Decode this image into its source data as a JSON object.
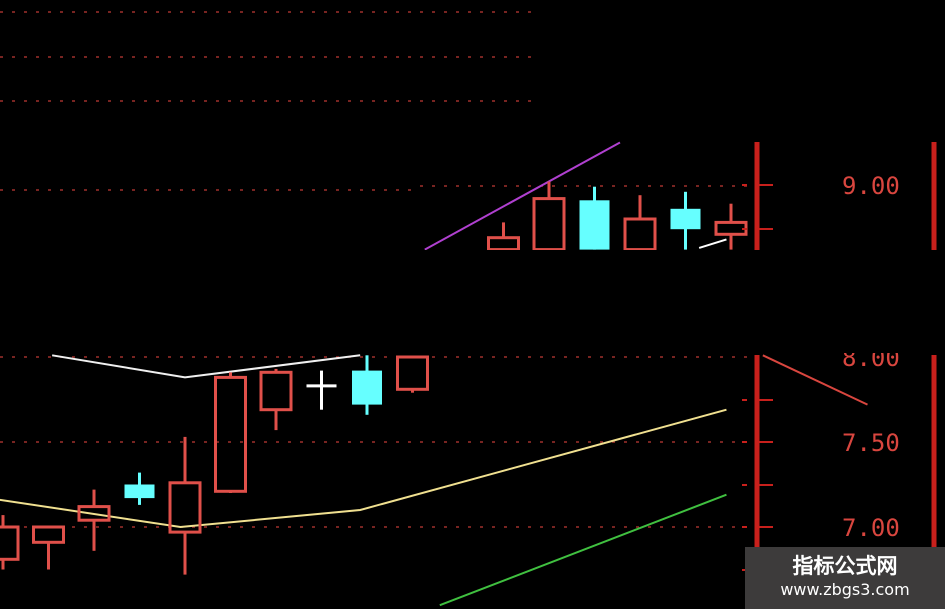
{
  "chart_data": {
    "type": "candlestick",
    "title": "",
    "colors": {
      "up": "#e0504a",
      "down": "#66ffff",
      "doji": "#ffffff",
      "grid": "#a0302c",
      "axis": "#c8201c",
      "label": "#d9463f"
    },
    "panels": [
      {
        "name": "upper",
        "y_ticks": [
          "9.00"
        ],
        "candles": [
          {
            "i": 11,
            "o": 8.62,
            "h": 8.78,
            "l": 8.62,
            "c": 8.69
          },
          {
            "i": 12,
            "o": 8.62,
            "h": 9.02,
            "l": 8.62,
            "c": 8.92
          },
          {
            "i": 13,
            "o": 8.91,
            "h": 8.99,
            "l": 8.62,
            "c": 8.62
          },
          {
            "i": 14,
            "o": 8.62,
            "h": 8.94,
            "l": 8.62,
            "c": 8.8
          },
          {
            "i": 15,
            "o": 8.86,
            "h": 8.96,
            "l": 8.62,
            "c": 8.74
          },
          {
            "i": 16,
            "o": 8.71,
            "h": 8.89,
            "l": 8.62,
            "c": 8.78
          }
        ],
        "lines": [
          {
            "color": "#b040d0",
            "points": [
              [
                9.27,
                8.62
              ],
              [
                13.56,
                9.25
              ]
            ]
          },
          {
            "color": "#ffffff",
            "points": [
              [
                15.3,
                8.63
              ],
              [
                15.9,
                8.68
              ]
            ]
          }
        ]
      },
      {
        "name": "lower",
        "y_ticks": [
          "8.00",
          "7.50",
          "7.00"
        ],
        "candles": [
          {
            "i": 0,
            "o": 6.81,
            "h": 7.07,
            "l": 6.75,
            "c": 7.0
          },
          {
            "i": 1,
            "o": 6.91,
            "h": 7.0,
            "l": 6.75,
            "c": 7.0
          },
          {
            "i": 2,
            "o": 7.04,
            "h": 7.22,
            "l": 6.86,
            "c": 7.12
          },
          {
            "i": 3,
            "o": 7.25,
            "h": 7.32,
            "l": 7.13,
            "c": 7.17
          },
          {
            "i": 4,
            "o": 6.97,
            "h": 7.53,
            "l": 6.72,
            "c": 7.26
          },
          {
            "i": 5,
            "o": 7.21,
            "h": 7.91,
            "l": 7.2,
            "c": 7.88
          },
          {
            "i": 6,
            "o": 7.69,
            "h": 7.93,
            "l": 7.57,
            "c": 7.91
          },
          {
            "i": 7,
            "o": 7.83,
            "h": 7.92,
            "l": 7.69,
            "c": 7.83
          },
          {
            "i": 8,
            "o": 7.92,
            "h": 8.01,
            "l": 7.66,
            "c": 7.72
          },
          {
            "i": 9,
            "o": 7.81,
            "h": 8.0,
            "l": 7.79,
            "c": 8.0
          }
        ],
        "lines": [
          {
            "color": "#f0f0f0",
            "points": [
              [
                1.08,
                8.01
              ],
              [
                4.0,
                7.88
              ],
              [
                7.85,
                8.01
              ]
            ]
          },
          {
            "color": "#f0e090",
            "points": [
              [
                -0.07,
                7.16
              ],
              [
                3.9,
                7.0
              ],
              [
                7.85,
                7.1
              ],
              [
                15.9,
                7.69
              ]
            ]
          },
          {
            "color": "#40c040",
            "points": [
              [
                9.6,
                6.54
              ],
              [
                15.9,
                7.19
              ]
            ]
          },
          {
            "color": "#d9463f",
            "points": [
              [
                16.7,
                8.01
              ],
              [
                19.0,
                7.72
              ]
            ]
          }
        ]
      }
    ]
  },
  "watermark": {
    "name": "指标公式网",
    "url": "www.zbgs3.com"
  }
}
